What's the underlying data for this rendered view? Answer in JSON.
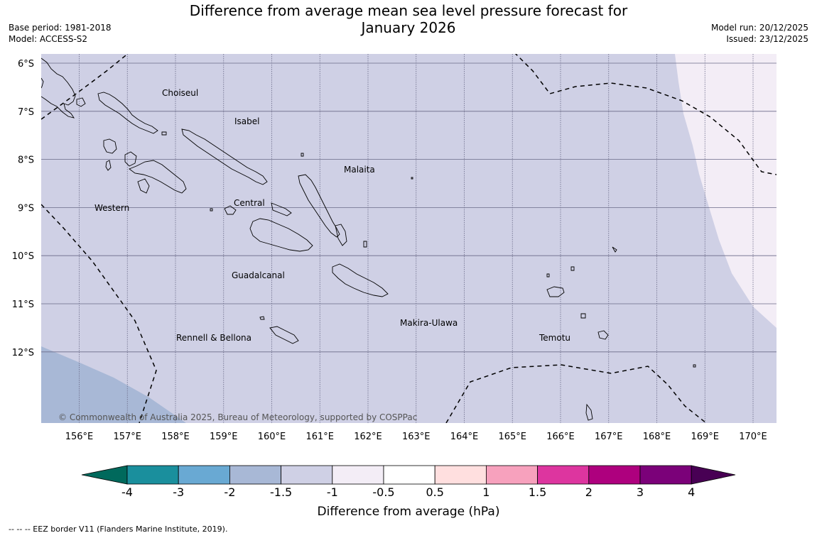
{
  "title_line1": "Difference from average mean sea level pressure forecast for",
  "title_line2": "January 2026",
  "base_period": "Base period: 1981-2018",
  "model": "Model: ACCESS-S2",
  "model_run": "Model run: 20/12/2025",
  "issued": "Issued: 23/12/2025",
  "copyright": "© Commonwealth of Australia 2025, Bureau of Meteorology, supported by COSPPac",
  "footnote": "-- -- -- EEZ border V11 (Flanders Marine Institute, 2019).",
  "map": {
    "lat_labels": [
      "6°S",
      "7°S",
      "8°S",
      "9°S",
      "10°S",
      "11°S",
      "12°S"
    ],
    "lon_labels": [
      "156°E",
      "157°E",
      "158°E",
      "159°E",
      "160°E",
      "161°E",
      "162°E",
      "163°E",
      "164°E",
      "165°E",
      "166°E",
      "167°E",
      "168°E",
      "169°E",
      "170°E"
    ],
    "regions": [
      "Choiseul",
      "Isabel",
      "Malaita",
      "Western",
      "Central",
      "Guadalcanal",
      "Makira-Ulawa",
      "Rennell & Bellona",
      "Temotu"
    ]
  },
  "colorbar": {
    "title": "Difference from average (hPa)",
    "ticks": [
      "-4",
      "-3",
      "-2",
      "-1.5",
      "-1",
      "-0.5",
      "0.5",
      "1",
      "1.5",
      "2",
      "3",
      "4"
    ],
    "colors": [
      "#00695c",
      "#1a8f9d",
      "#69a9d3",
      "#a8b8d6",
      "#cfd0e5",
      "#f3edf6",
      "#ffffff",
      "#ffdfdf",
      "#f7a1bd",
      "#dd359f",
      "#ae007e",
      "#7b0179",
      "#480054"
    ]
  }
}
